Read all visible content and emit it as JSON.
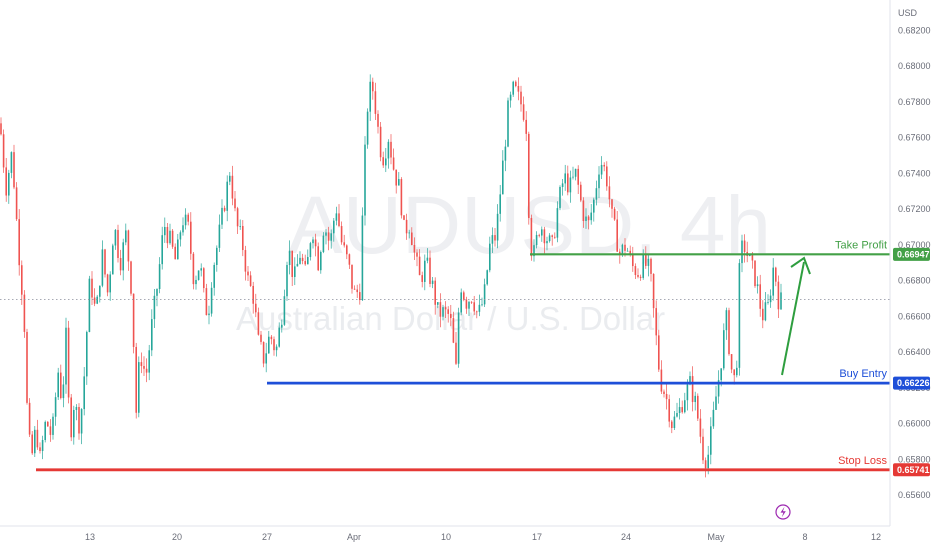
{
  "chart_data": {
    "type": "candlestick",
    "symbol": "AUDUSD, 4h",
    "description": "Australian Dollar / U.S. Dollar",
    "currency": "USD",
    "colors": {
      "up": "#26a69a",
      "down": "#ef5350",
      "take_profit": "#43a047",
      "buy_entry": "#1e4fd8",
      "stop_loss": "#e53935",
      "arrow": "#2e9e3f"
    },
    "y_ticks": [
      "0.68200",
      "0.68000",
      "0.67800",
      "0.67600",
      "0.67400",
      "0.67200",
      "0.67000",
      "0.66800",
      "0.66600",
      "0.66400",
      "0.66200",
      "0.66000",
      "0.65800",
      "0.65600"
    ],
    "ylim": [
      0.6546,
      0.6832
    ],
    "x_ticks": [
      "13",
      "20",
      "27",
      "Apr",
      "10",
      "17",
      "24",
      "May",
      "8",
      "12"
    ],
    "current_price": 0.66694,
    "levels": [
      {
        "name": "Take Profit",
        "value": 0.66947,
        "tag": "0.66947"
      },
      {
        "name": "Buy Entry",
        "value": 0.66226,
        "tag": "0.66226"
      },
      {
        "name": "Stop Loss",
        "value": 0.65741,
        "tag": "0.65741"
      }
    ],
    "price_path": [
      [
        0,
        0.6768
      ],
      [
        6,
        0.6732
      ],
      [
        12,
        0.6752
      ],
      [
        18,
        0.6702
      ],
      [
        24,
        0.6662
      ],
      [
        28,
        0.6592
      ],
      [
        32,
        0.6582
      ],
      [
        36,
        0.6598
      ],
      [
        40,
        0.658
      ],
      [
        46,
        0.6602
      ],
      [
        52,
        0.6592
      ],
      [
        58,
        0.663
      ],
      [
        62,
        0.6612
      ],
      [
        66,
        0.6648
      ],
      [
        70,
        0.6592
      ],
      [
        74,
        0.6612
      ],
      [
        80,
        0.6598
      ],
      [
        84,
        0.6625
      ],
      [
        90,
        0.6682
      ],
      [
        96,
        0.666
      ],
      [
        102,
        0.6695
      ],
      [
        108,
        0.6672
      ],
      [
        114,
        0.6712
      ],
      [
        120,
        0.669
      ],
      [
        126,
        0.6706
      ],
      [
        132,
        0.6672
      ],
      [
        136,
        0.6605
      ],
      [
        140,
        0.664
      ],
      [
        146,
        0.6626
      ],
      [
        152,
        0.6656
      ],
      [
        158,
        0.668
      ],
      [
        164,
        0.6712
      ],
      [
        170,
        0.6702
      ],
      [
        176,
        0.669
      ],
      [
        182,
        0.6715
      ],
      [
        188,
        0.671
      ],
      [
        194,
        0.668
      ],
      [
        200,
        0.669
      ],
      [
        204,
        0.667
      ],
      [
        208,
        0.666
      ],
      [
        212,
        0.6684
      ],
      [
        218,
        0.6702
      ],
      [
        224,
        0.6722
      ],
      [
        230,
        0.6742
      ],
      [
        236,
        0.6712
      ],
      [
        242,
        0.6702
      ],
      [
        248,
        0.668
      ],
      [
        254,
        0.667
      ],
      [
        258,
        0.6646
      ],
      [
        264,
        0.6636
      ],
      [
        270,
        0.665
      ],
      [
        276,
        0.664
      ],
      [
        282,
        0.6662
      ],
      [
        288,
        0.67
      ],
      [
        294,
        0.668
      ],
      [
        300,
        0.6695
      ],
      [
        306,
        0.6682
      ],
      [
        312,
        0.6712
      ],
      [
        318,
        0.669
      ],
      [
        324,
        0.6712
      ],
      [
        330,
        0.67
      ],
      [
        336,
        0.6722
      ],
      [
        342,
        0.67
      ],
      [
        348,
        0.669
      ],
      [
        354,
        0.6672
      ],
      [
        360,
        0.6675
      ],
      [
        364,
        0.674
      ],
      [
        368,
        0.6782
      ],
      [
        372,
        0.679
      ],
      [
        376,
        0.6775
      ],
      [
        380,
        0.6755
      ],
      [
        384,
        0.6748
      ],
      [
        388,
        0.6762
      ],
      [
        394,
        0.6742
      ],
      [
        400,
        0.673
      ],
      [
        404,
        0.6708
      ],
      [
        410,
        0.6712
      ],
      [
        414,
        0.6696
      ],
      [
        420,
        0.668
      ],
      [
        426,
        0.669
      ],
      [
        432,
        0.6678
      ],
      [
        438,
        0.6662
      ],
      [
        444,
        0.6662
      ],
      [
        450,
        0.666
      ],
      [
        456,
        0.663
      ],
      [
        460,
        0.668
      ],
      [
        466,
        0.6668
      ],
      [
        472,
        0.6672
      ],
      [
        478,
        0.666
      ],
      [
        484,
        0.667
      ],
      [
        490,
        0.67
      ],
      [
        496,
        0.6705
      ],
      [
        502,
        0.674
      ],
      [
        508,
        0.6775
      ],
      [
        514,
        0.6788
      ],
      [
        518,
        0.6782
      ],
      [
        522,
        0.6778
      ],
      [
        526,
        0.677
      ],
      [
        530,
        0.67
      ],
      [
        534,
        0.6695
      ],
      [
        540,
        0.6712
      ],
      [
        546,
        0.6705
      ],
      [
        552,
        0.6698
      ],
      [
        558,
        0.6722
      ],
      [
        564,
        0.6738
      ],
      [
        570,
        0.6732
      ],
      [
        576,
        0.674
      ],
      [
        582,
        0.672
      ],
      [
        588,
        0.671
      ],
      [
        594,
        0.6725
      ],
      [
        600,
        0.6748
      ],
      [
        606,
        0.674
      ],
      [
        612,
        0.6715
      ],
      [
        616,
        0.6705
      ],
      [
        620,
        0.6695
      ],
      [
        626,
        0.67
      ],
      [
        632,
        0.6688
      ],
      [
        638,
        0.6685
      ],
      [
        644,
        0.669
      ],
      [
        650,
        0.6685
      ],
      [
        654,
        0.666
      ],
      [
        660,
        0.6625
      ],
      [
        666,
        0.6615
      ],
      [
        672,
        0.66
      ],
      [
        678,
        0.6605
      ],
      [
        684,
        0.6615
      ],
      [
        690,
        0.6622
      ],
      [
        696,
        0.661
      ],
      [
        700,
        0.6595
      ],
      [
        704,
        0.658
      ],
      [
        708,
        0.6582
      ],
      [
        712,
        0.6598
      ],
      [
        716,
        0.6615
      ],
      [
        720,
        0.663
      ],
      [
        726,
        0.666
      ],
      [
        732,
        0.6628
      ],
      [
        736,
        0.6622
      ],
      [
        740,
        0.6695
      ],
      [
        744,
        0.67
      ],
      [
        750,
        0.669
      ],
      [
        756,
        0.668
      ],
      [
        762,
        0.666
      ],
      [
        768,
        0.6665
      ],
      [
        774,
        0.669
      ],
      [
        778,
        0.667
      ],
      [
        782,
        0.6668
      ]
    ],
    "x_tick_pos": [
      90,
      177,
      267,
      354,
      446,
      537,
      626,
      716,
      805,
      876
    ]
  },
  "watermark": {
    "symbol": "AUDUSD, 4h",
    "name": "Australian Dollar / U.S. Dollar"
  }
}
